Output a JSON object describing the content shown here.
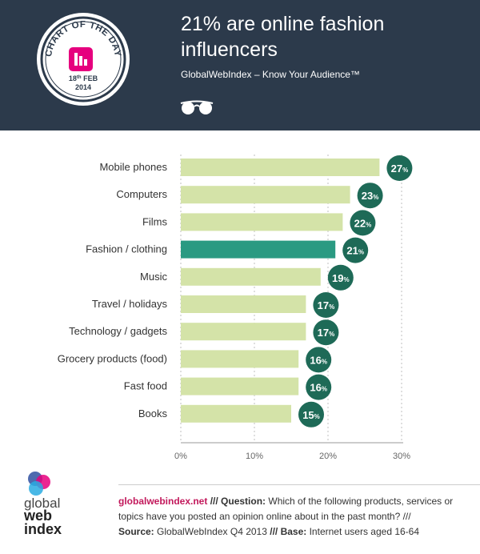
{
  "header": {
    "title": "21% are online fashion influencers",
    "subtitle": "GlobalWebIndex – Know Your Audience™",
    "badge": {
      "top_text": "CHART OF THE DAY",
      "date_prefix": "18",
      "date_sup": "th",
      "date_rest": " FEB",
      "year": "2014"
    },
    "glasses_icon": "glasses-icon"
  },
  "chart_data": {
    "type": "bar",
    "orientation": "horizontal",
    "categories": [
      "Mobile phones",
      "Computers",
      "Films",
      "Fashion / clothing",
      "Music",
      "Travel / holidays",
      "Technology / gadgets",
      "Grocery products (food)",
      "Fast food",
      "Books"
    ],
    "values": [
      27,
      23,
      22,
      21,
      19,
      17,
      17,
      16,
      16,
      15
    ],
    "value_labels": [
      "27",
      "23",
      "22",
      "21",
      "19",
      "17",
      "17",
      "16",
      "16",
      "15"
    ],
    "label_suffix": "%",
    "highlight_index": 3,
    "xlim": [
      0,
      30
    ],
    "xticks": [
      "0%",
      "10%",
      "20%",
      "30%"
    ],
    "colors": {
      "bar": "#d4e3a8",
      "highlight": "#2a9a82",
      "label_circle": "#1e6a57"
    }
  },
  "footer": {
    "logo_text": [
      "global",
      "web",
      "index"
    ],
    "site": "globalwebindex.net",
    "sep1": " /// ",
    "question_label": "Question:",
    "question": " Which of the following products, services or topics have you posted an opinion online about in the past month? ///",
    "source_label": "Source:",
    "source": " GlobalWebIndex Q4 2013",
    "sep2": " /// ",
    "base_label": "Base:",
    "base": " Internet users aged 16-64"
  }
}
